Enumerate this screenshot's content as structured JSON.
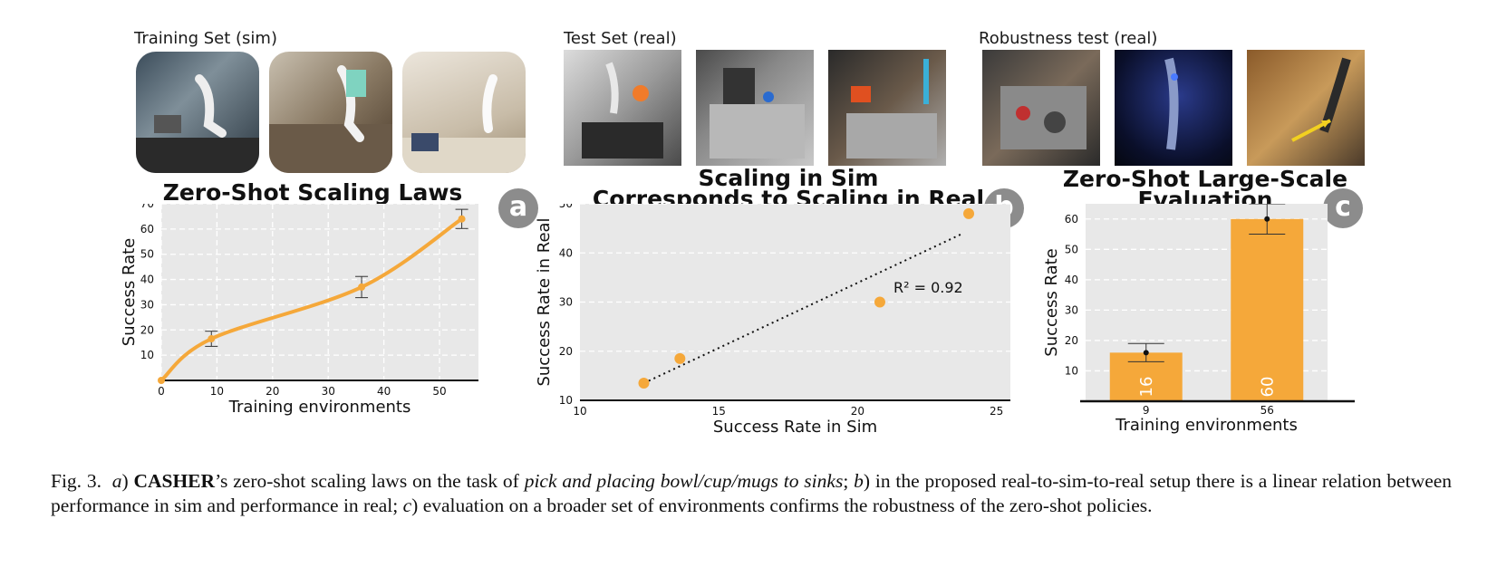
{
  "groups": {
    "training": "Training Set (sim)",
    "test": "Test Set (real)",
    "robustness": "Robustness test (real)"
  },
  "photos": [
    {
      "name": "sim-kitchen-tiles"
    },
    {
      "name": "sim-kitchen-colorful"
    },
    {
      "name": "sim-kitchen-white"
    },
    {
      "name": "real-kitchen-sink-1"
    },
    {
      "name": "real-kitchen-sink-2"
    },
    {
      "name": "real-kitchen-sink-3"
    },
    {
      "name": "robust-cluttered-sink"
    },
    {
      "name": "robust-dark-scene"
    },
    {
      "name": "robust-arrow-scene"
    }
  ],
  "chart_data": [
    {
      "type": "line",
      "title": "Zero-Shot Scaling Laws",
      "badge": "a",
      "xlabel": "Training environments",
      "ylabel": "Success Rate",
      "xlim": [
        0,
        57
      ],
      "ylim": [
        0,
        70
      ],
      "xticks": [
        0,
        10,
        20,
        30,
        40,
        50
      ],
      "yticks": [
        10,
        20,
        30,
        40,
        50,
        60,
        70
      ],
      "grid": true,
      "color": "#f5a83a",
      "x": [
        0,
        9,
        36,
        54
      ],
      "y": [
        0,
        16.5,
        37,
        64
      ],
      "err": [
        0,
        3,
        4.2,
        3.8
      ]
    },
    {
      "type": "scatter",
      "title": "Scaling in Sim",
      "subtitle": "Corresponds to Scaling in Real",
      "badge": "b",
      "xlabel": "Success Rate in Sim",
      "ylabel": "Success Rate in Real",
      "xlim": [
        10,
        25.5
      ],
      "ylim": [
        10,
        50
      ],
      "xticks": [
        10,
        15,
        20,
        25
      ],
      "yticks": [
        10,
        20,
        30,
        40,
        50
      ],
      "grid": true,
      "color": "#f5a83a",
      "x": [
        12.3,
        13.6,
        20.8,
        24.0
      ],
      "y": [
        13.5,
        18.5,
        30.0,
        48.0
      ],
      "fit": [
        [
          12.3,
          13.5
        ],
        [
          23.8,
          44.0
        ]
      ],
      "annotation": "R² = 0.92"
    },
    {
      "type": "bar",
      "title": "Zero-Shot Large-Scale",
      "subtitle": "Evaluation",
      "badge": "c",
      "xlabel": "Training environments",
      "ylabel": "Success Rate",
      "categories": [
        "9",
        "56"
      ],
      "values": [
        16,
        60
      ],
      "value_labels": [
        "16",
        "60"
      ],
      "err_low": [
        3,
        5
      ],
      "err_high": [
        3,
        5
      ],
      "ylim": [
        0,
        65
      ],
      "yticks": [
        10,
        20,
        30,
        40,
        50,
        60
      ],
      "grid": true,
      "color": "#f5a83a"
    }
  ],
  "caption": {
    "fig": "Fig. 3.",
    "a": "a",
    "a_close": ")",
    "name": "CASHER",
    "t1": "’s zero-shot scaling laws on the task of",
    "task": "pick and placing bowl/cup/mugs to sinks",
    "t2": ";",
    "b": "b",
    "t3": ") in the proposed real-to-sim-to-real setup there is a linear relation between performance in sim and performance in real;",
    "c": "c",
    "t4": ") evaluation on a broader set of environments confirms the robustness of the zero-shot policies."
  }
}
